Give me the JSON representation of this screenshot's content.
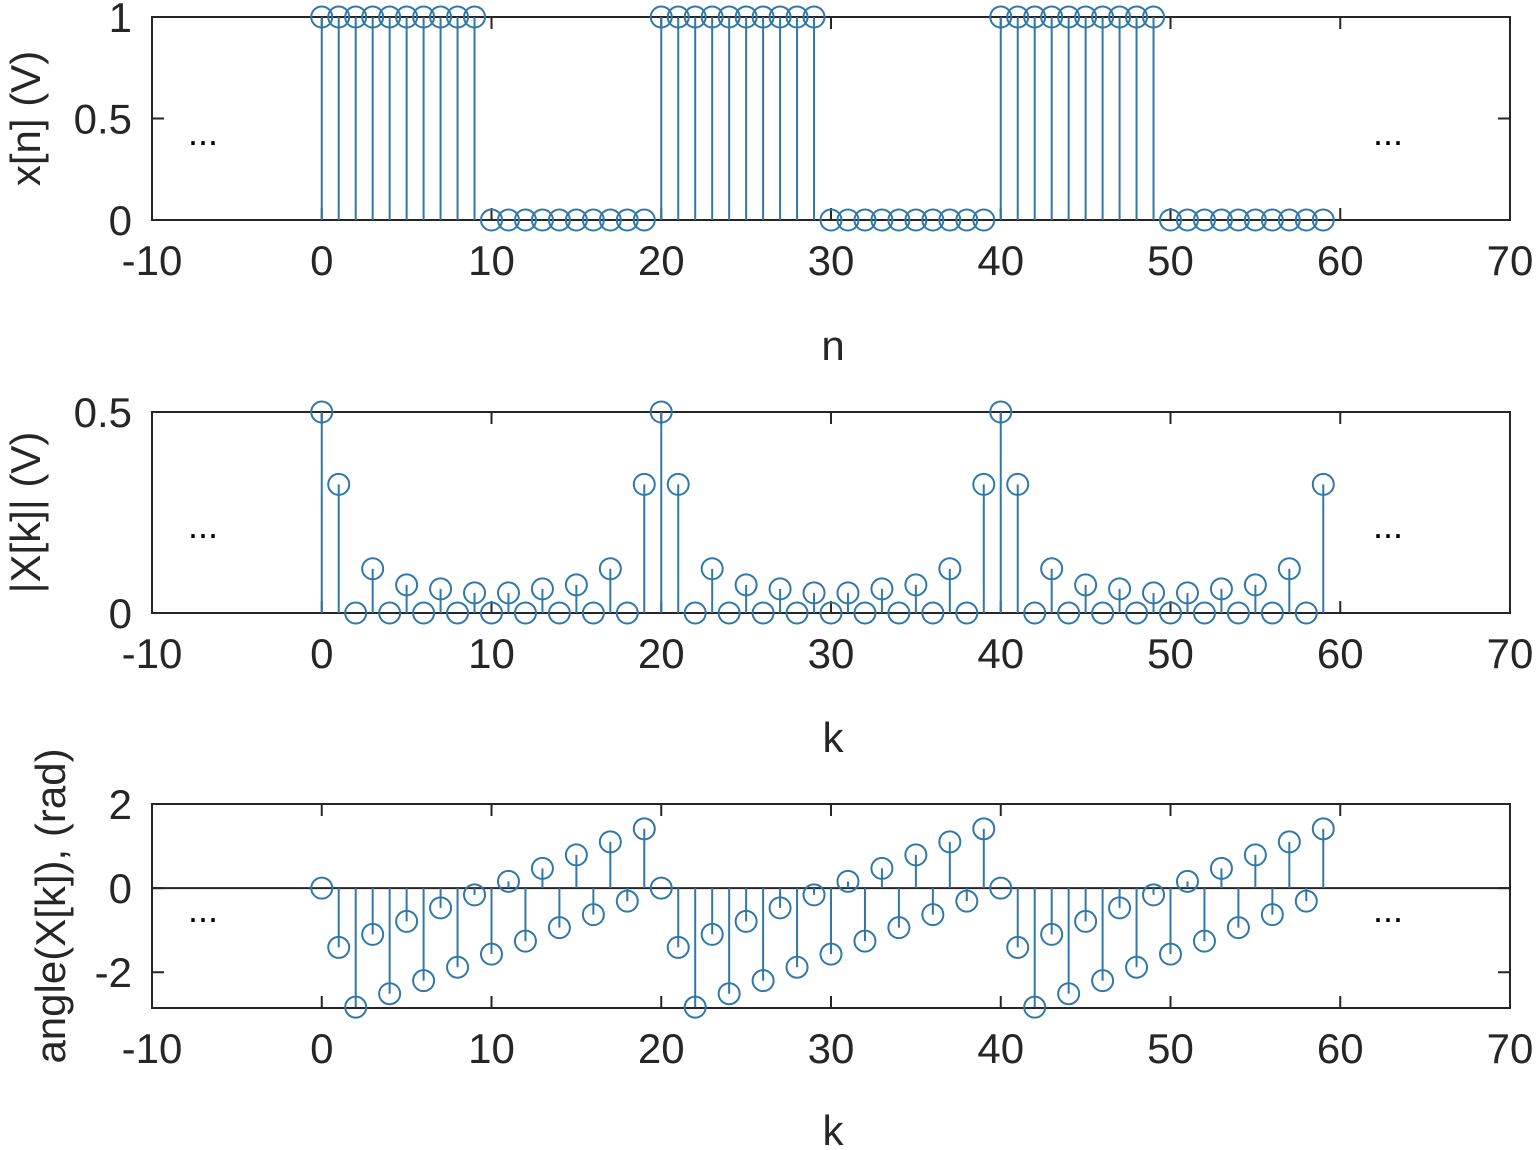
{
  "colors": {
    "stem": "#3078a8",
    "axis": "#262626",
    "background": "#ffffff"
  },
  "chart_data": [
    {
      "type": "stem",
      "ylabel": "x[n] (V)",
      "xlabel": "n",
      "xlim": [
        -10,
        70
      ],
      "ylim": [
        0,
        1
      ],
      "xticks": [
        "-10",
        "0",
        "10",
        "20",
        "30",
        "40",
        "50",
        "60",
        "70"
      ],
      "yticks": [
        "0",
        "0.5",
        "1"
      ],
      "baseline": 0,
      "ellipsis": "...",
      "x": [
        0,
        1,
        2,
        3,
        4,
        5,
        6,
        7,
        8,
        9,
        10,
        11,
        12,
        13,
        14,
        15,
        16,
        17,
        18,
        19,
        20,
        21,
        22,
        23,
        24,
        25,
        26,
        27,
        28,
        29,
        30,
        31,
        32,
        33,
        34,
        35,
        36,
        37,
        38,
        39,
        40,
        41,
        42,
        43,
        44,
        45,
        46,
        47,
        48,
        49,
        50,
        51,
        52,
        53,
        54,
        55,
        56,
        57,
        58,
        59
      ],
      "values": [
        1,
        1,
        1,
        1,
        1,
        1,
        1,
        1,
        1,
        1,
        0,
        0,
        0,
        0,
        0,
        0,
        0,
        0,
        0,
        0,
        1,
        1,
        1,
        1,
        1,
        1,
        1,
        1,
        1,
        1,
        0,
        0,
        0,
        0,
        0,
        0,
        0,
        0,
        0,
        0,
        1,
        1,
        1,
        1,
        1,
        1,
        1,
        1,
        1,
        1,
        0,
        0,
        0,
        0,
        0,
        0,
        0,
        0,
        0,
        0
      ]
    },
    {
      "type": "stem",
      "ylabel": "|X[k]| (V)",
      "xlabel": "k",
      "xlim": [
        -10,
        70
      ],
      "ylim": [
        0,
        0.5
      ],
      "xticks": [
        "-10",
        "0",
        "10",
        "20",
        "30",
        "40",
        "50",
        "60",
        "70"
      ],
      "yticks": [
        "0",
        "0.5"
      ],
      "baseline": 0,
      "ellipsis": "...",
      "x": [
        0,
        1,
        2,
        3,
        4,
        5,
        6,
        7,
        8,
        9,
        10,
        11,
        12,
        13,
        14,
        15,
        16,
        17,
        18,
        19,
        20,
        21,
        22,
        23,
        24,
        25,
        26,
        27,
        28,
        29,
        30,
        31,
        32,
        33,
        34,
        35,
        36,
        37,
        38,
        39,
        40,
        41,
        42,
        43,
        44,
        45,
        46,
        47,
        48,
        49,
        50,
        51,
        52,
        53,
        54,
        55,
        56,
        57,
        58,
        59
      ],
      "values": [
        0.5,
        0.32,
        0,
        0.11,
        0,
        0.07,
        0,
        0.06,
        0,
        0.05,
        0,
        0.05,
        0,
        0.06,
        0,
        0.07,
        0,
        0.11,
        0,
        0.32,
        0.5,
        0.32,
        0,
        0.11,
        0,
        0.07,
        0,
        0.06,
        0,
        0.05,
        0,
        0.05,
        0,
        0.06,
        0,
        0.07,
        0,
        0.11,
        0,
        0.32,
        0.5,
        0.32,
        0,
        0.11,
        0,
        0.07,
        0,
        0.06,
        0,
        0.05,
        0,
        0.05,
        0,
        0.06,
        0,
        0.07,
        0,
        0.11,
        0,
        0.32
      ]
    },
    {
      "type": "stem",
      "ylabel": "angle(X[k]), (rad)",
      "xlabel": "k",
      "xlim": [
        -10,
        70
      ],
      "ylim": [
        -2.85,
        2
      ],
      "xticks": [
        "-10",
        "0",
        "10",
        "20",
        "30",
        "40",
        "50",
        "60",
        "70"
      ],
      "yticks": [
        "-2",
        "0",
        "2"
      ],
      "ytick_values": [
        -2,
        0,
        2
      ],
      "baseline": 0,
      "ellipsis": "...",
      "x": [
        0,
        1,
        2,
        3,
        4,
        5,
        6,
        7,
        8,
        9,
        10,
        11,
        12,
        13,
        14,
        15,
        16,
        17,
        18,
        19,
        20,
        21,
        22,
        23,
        24,
        25,
        26,
        27,
        28,
        29,
        30,
        31,
        32,
        33,
        34,
        35,
        36,
        37,
        38,
        39,
        40,
        41,
        42,
        43,
        44,
        45,
        46,
        47,
        48,
        49,
        50,
        51,
        52,
        53,
        54,
        55,
        56,
        57,
        58,
        59
      ],
      "values": [
        0,
        -1.41,
        -2.83,
        -1.1,
        -2.51,
        -0.79,
        -2.2,
        -0.47,
        -1.88,
        -0.16,
        -1.57,
        0.16,
        -1.26,
        0.47,
        -0.94,
        0.79,
        -0.63,
        1.1,
        -0.31,
        1.41,
        0,
        -1.41,
        -2.83,
        -1.1,
        -2.51,
        -0.79,
        -2.2,
        -0.47,
        -1.88,
        -0.16,
        -1.57,
        0.16,
        -1.26,
        0.47,
        -0.94,
        0.79,
        -0.63,
        1.1,
        -0.31,
        1.41,
        0,
        -1.41,
        -2.83,
        -1.1,
        -2.51,
        -0.79,
        -2.2,
        -0.47,
        -1.88,
        -0.16,
        -1.57,
        0.16,
        -1.26,
        0.47,
        -0.94,
        0.79,
        -0.63,
        1.1,
        -0.31,
        1.41
      ]
    }
  ]
}
